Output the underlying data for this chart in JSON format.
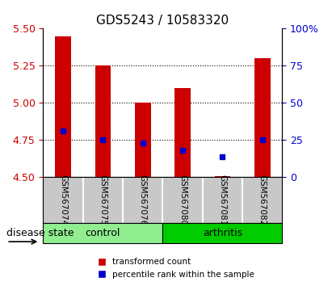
{
  "title": "GDS5243 / 10583320",
  "samples": [
    "GSM567074",
    "GSM567075",
    "GSM567076",
    "GSM567080",
    "GSM567081",
    "GSM567082"
  ],
  "red_values": [
    5.45,
    5.25,
    5.0,
    5.1,
    4.51,
    5.3
  ],
  "blue_values": [
    4.81,
    4.75,
    4.73,
    4.68,
    4.64,
    4.75
  ],
  "y_min": 4.5,
  "y_max": 5.5,
  "y_ticks_left": [
    4.5,
    4.75,
    5.0,
    5.25,
    5.5
  ],
  "y_ticks_right": [
    0,
    25,
    50,
    75,
    100
  ],
  "grid_lines": [
    4.75,
    5.0,
    5.25
  ],
  "control_color": "#90EE90",
  "arthritis_color": "#00CC00",
  "bar_color": "#CC0000",
  "dot_color": "#0000CC",
  "bar_width": 0.4,
  "label_red": "transformed count",
  "label_blue": "percentile rank within the sample",
  "disease_label": "disease state",
  "control_label": "control",
  "arthritis_label": "arthritis",
  "title_fontsize": 11,
  "tick_fontsize": 9,
  "label_fontsize": 9,
  "background_gray": "#C8C8C8",
  "figsize": [
    4.11,
    3.54
  ],
  "dpi": 100
}
